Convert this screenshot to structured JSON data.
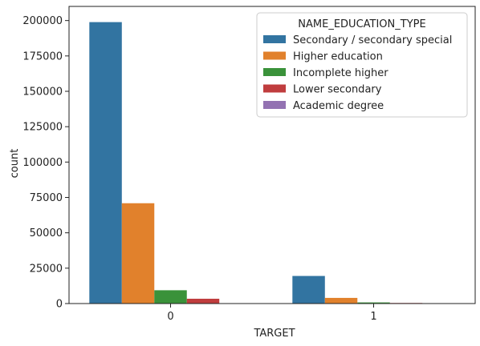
{
  "chart_data": {
    "type": "bar",
    "categories": [
      "0",
      "1"
    ],
    "series": [
      {
        "name": "Secondary / secondary special",
        "color": "#3274a1",
        "values": [
          198900,
          19500
        ]
      },
      {
        "name": "Higher education",
        "color": "#e1812c",
        "values": [
          70900,
          4000
        ]
      },
      {
        "name": "Incomplete higher",
        "color": "#3a923a",
        "values": [
          9400,
          800
        ]
      },
      {
        "name": "Lower secondary",
        "color": "#c03d3e",
        "values": [
          3400,
          400
        ]
      },
      {
        "name": "Academic degree",
        "color": "#9372b2",
        "values": [
          150,
          10
        ]
      }
    ],
    "xlabel": "TARGET",
    "ylabel": "count",
    "ylim": [
      0,
      210000
    ],
    "yticks": [
      0,
      25000,
      50000,
      75000,
      100000,
      125000,
      150000,
      175000,
      200000
    ],
    "legend": {
      "title": "NAME_EDUCATION_TYPE",
      "placement": "top-right"
    },
    "grid": false
  }
}
